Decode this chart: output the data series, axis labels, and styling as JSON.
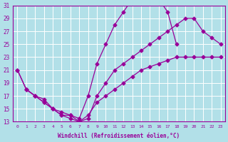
{
  "xlabel": "Windchill (Refroidissement éolien,°C)",
  "bg_color": "#b2e0e8",
  "grid_color": "#ffffff",
  "line_color": "#990099",
  "xlim": [
    -0.5,
    23.5
  ],
  "ylim": [
    13,
    31
  ],
  "xticks": [
    0,
    1,
    2,
    3,
    4,
    5,
    6,
    7,
    8,
    9,
    10,
    11,
    12,
    13,
    14,
    15,
    16,
    17,
    18,
    19,
    20,
    21,
    22,
    23
  ],
  "yticks": [
    13,
    15,
    17,
    19,
    21,
    23,
    25,
    27,
    29,
    31
  ],
  "line1_x": [
    0,
    1,
    2,
    3,
    4,
    5,
    6,
    7,
    8,
    9,
    10,
    11,
    12,
    13,
    14,
    15,
    16,
    17,
    18
  ],
  "line1_y": [
    21,
    18,
    17,
    16,
    15,
    14.5,
    14,
    13.5,
    17,
    22,
    25,
    28,
    30,
    32,
    32,
    32,
    32,
    30,
    25
  ],
  "line2_x": [
    1,
    2,
    3,
    4,
    5,
    6,
    7,
    8,
    9,
    10,
    11,
    12,
    13,
    14,
    15,
    16,
    17,
    18,
    19,
    20,
    21,
    22,
    23
  ],
  "line2_y": [
    18,
    17,
    16,
    15,
    14,
    14,
    13,
    13.5,
    17,
    19,
    21,
    22,
    23,
    24,
    25,
    26,
    27,
    28,
    29,
    29,
    27,
    26,
    25
  ],
  "line3_x": [
    0,
    1,
    2,
    3,
    4,
    5,
    6,
    7,
    8,
    9,
    10,
    11,
    12,
    13,
    14,
    15,
    16,
    17,
    18,
    19,
    20,
    21,
    22,
    23
  ],
  "line3_y": [
    21,
    18,
    17,
    16.5,
    15,
    14,
    13.5,
    13,
    14,
    16,
    17,
    18,
    19,
    20,
    21,
    21.5,
    22,
    22.5,
    23,
    23,
    23,
    23,
    23,
    23
  ]
}
